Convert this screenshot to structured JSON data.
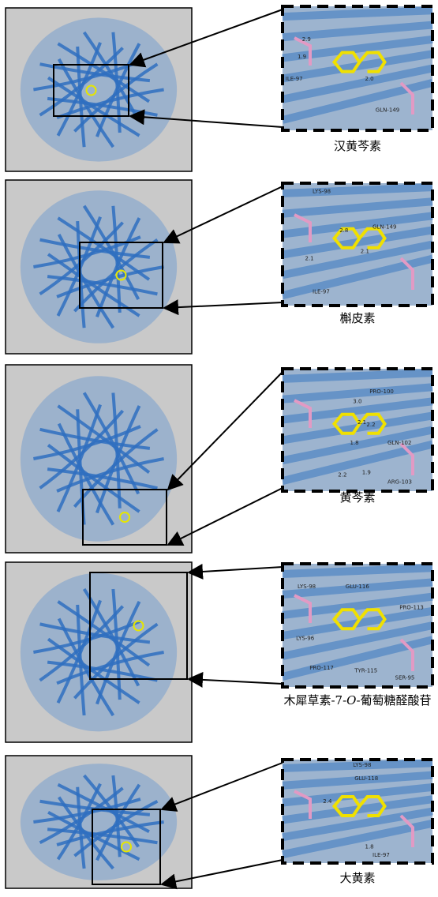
{
  "panels": [
    {
      "caption": [
        "汉黄芩素"
      ],
      "labels": [
        "2.9",
        "1.9",
        "2.0",
        "ILE-97",
        "GLN-149"
      ]
    },
    {
      "caption": [
        "槲皮素"
      ],
      "labels": [
        "LYS-98",
        "2.8",
        "GLN-149",
        "2.1",
        "2.1",
        "ILE-97"
      ]
    },
    {
      "caption": [
        "黄芩素"
      ],
      "labels": [
        "PRO-100",
        "3.0",
        "2.1",
        "2.2",
        "GLN-102",
        "1.8",
        "2.2",
        "1.9",
        "ARG-103"
      ]
    },
    {
      "caption": [
        "木犀草素-7-",
        "O",
        "-葡萄糖醛酸苷"
      ],
      "labels": [
        "LYS-98",
        "GLU-116",
        "PRO-113",
        "LYS-96",
        "PRO-117",
        "TYR-115",
        "SER-95"
      ]
    },
    {
      "caption": [
        "大黄素"
      ],
      "labels": [
        "LYS-98",
        "GLU-118",
        "2.4",
        "1.8",
        "ILE-97"
      ]
    }
  ]
}
